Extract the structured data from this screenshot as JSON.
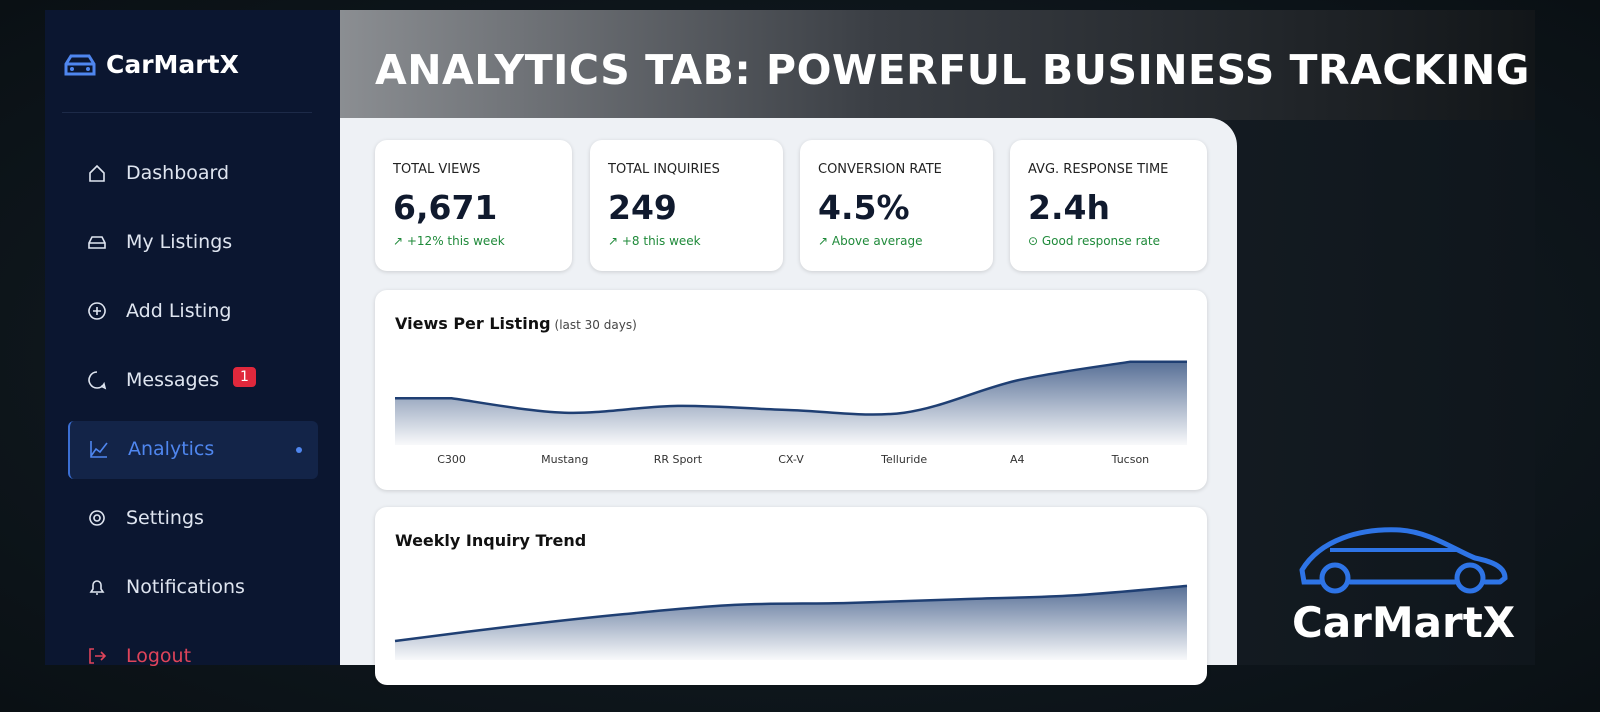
{
  "brand": "CarMartX",
  "nav": [
    {
      "label": "Dashboard"
    },
    {
      "label": "My Listings"
    },
    {
      "label": "Add Listing"
    },
    {
      "label": "Messages",
      "badge": "1"
    },
    {
      "label": "Analytics",
      "active": true
    },
    {
      "label": "Settings"
    },
    {
      "label": "Notifications"
    },
    {
      "label": "Logout"
    }
  ],
  "headline": "ANALYTICS TAB: POWERFUL BUSINESS TRACKING",
  "stats": [
    {
      "label": "TOTAL VIEWS",
      "value": "6,671",
      "note": "↗ +12% this week"
    },
    {
      "label": "TOTAL INQUIRIES",
      "value": "249",
      "note": "↗ +8 this week"
    },
    {
      "label": "CONVERSION RATE",
      "value": "4.5%",
      "note": "↗ Above average"
    },
    {
      "label": "AVG. RESPONSE TIME",
      "value": "2.4h",
      "note": "⊙ Good response rate"
    }
  ],
  "chart_data": [
    {
      "type": "area",
      "title": "Views Per Listing",
      "subtitle": "(last 30 days)",
      "categories": [
        "C300",
        "Mustang",
        "RR Sport",
        "CX-V",
        "Telluride",
        "A4",
        "Tucson"
      ],
      "values": [
        55,
        38,
        46,
        41,
        38,
        76,
        98
      ],
      "color": "#1f3f73",
      "ylim": [
        0,
        100
      ]
    },
    {
      "type": "area",
      "title": "Weekly Inquiry Trend",
      "values": [
        20,
        35,
        48,
        58,
        60,
        64,
        68,
        78
      ],
      "color": "#1f3f73",
      "ylim": [
        0,
        100
      ]
    }
  ],
  "logo_text": "CarMartX"
}
